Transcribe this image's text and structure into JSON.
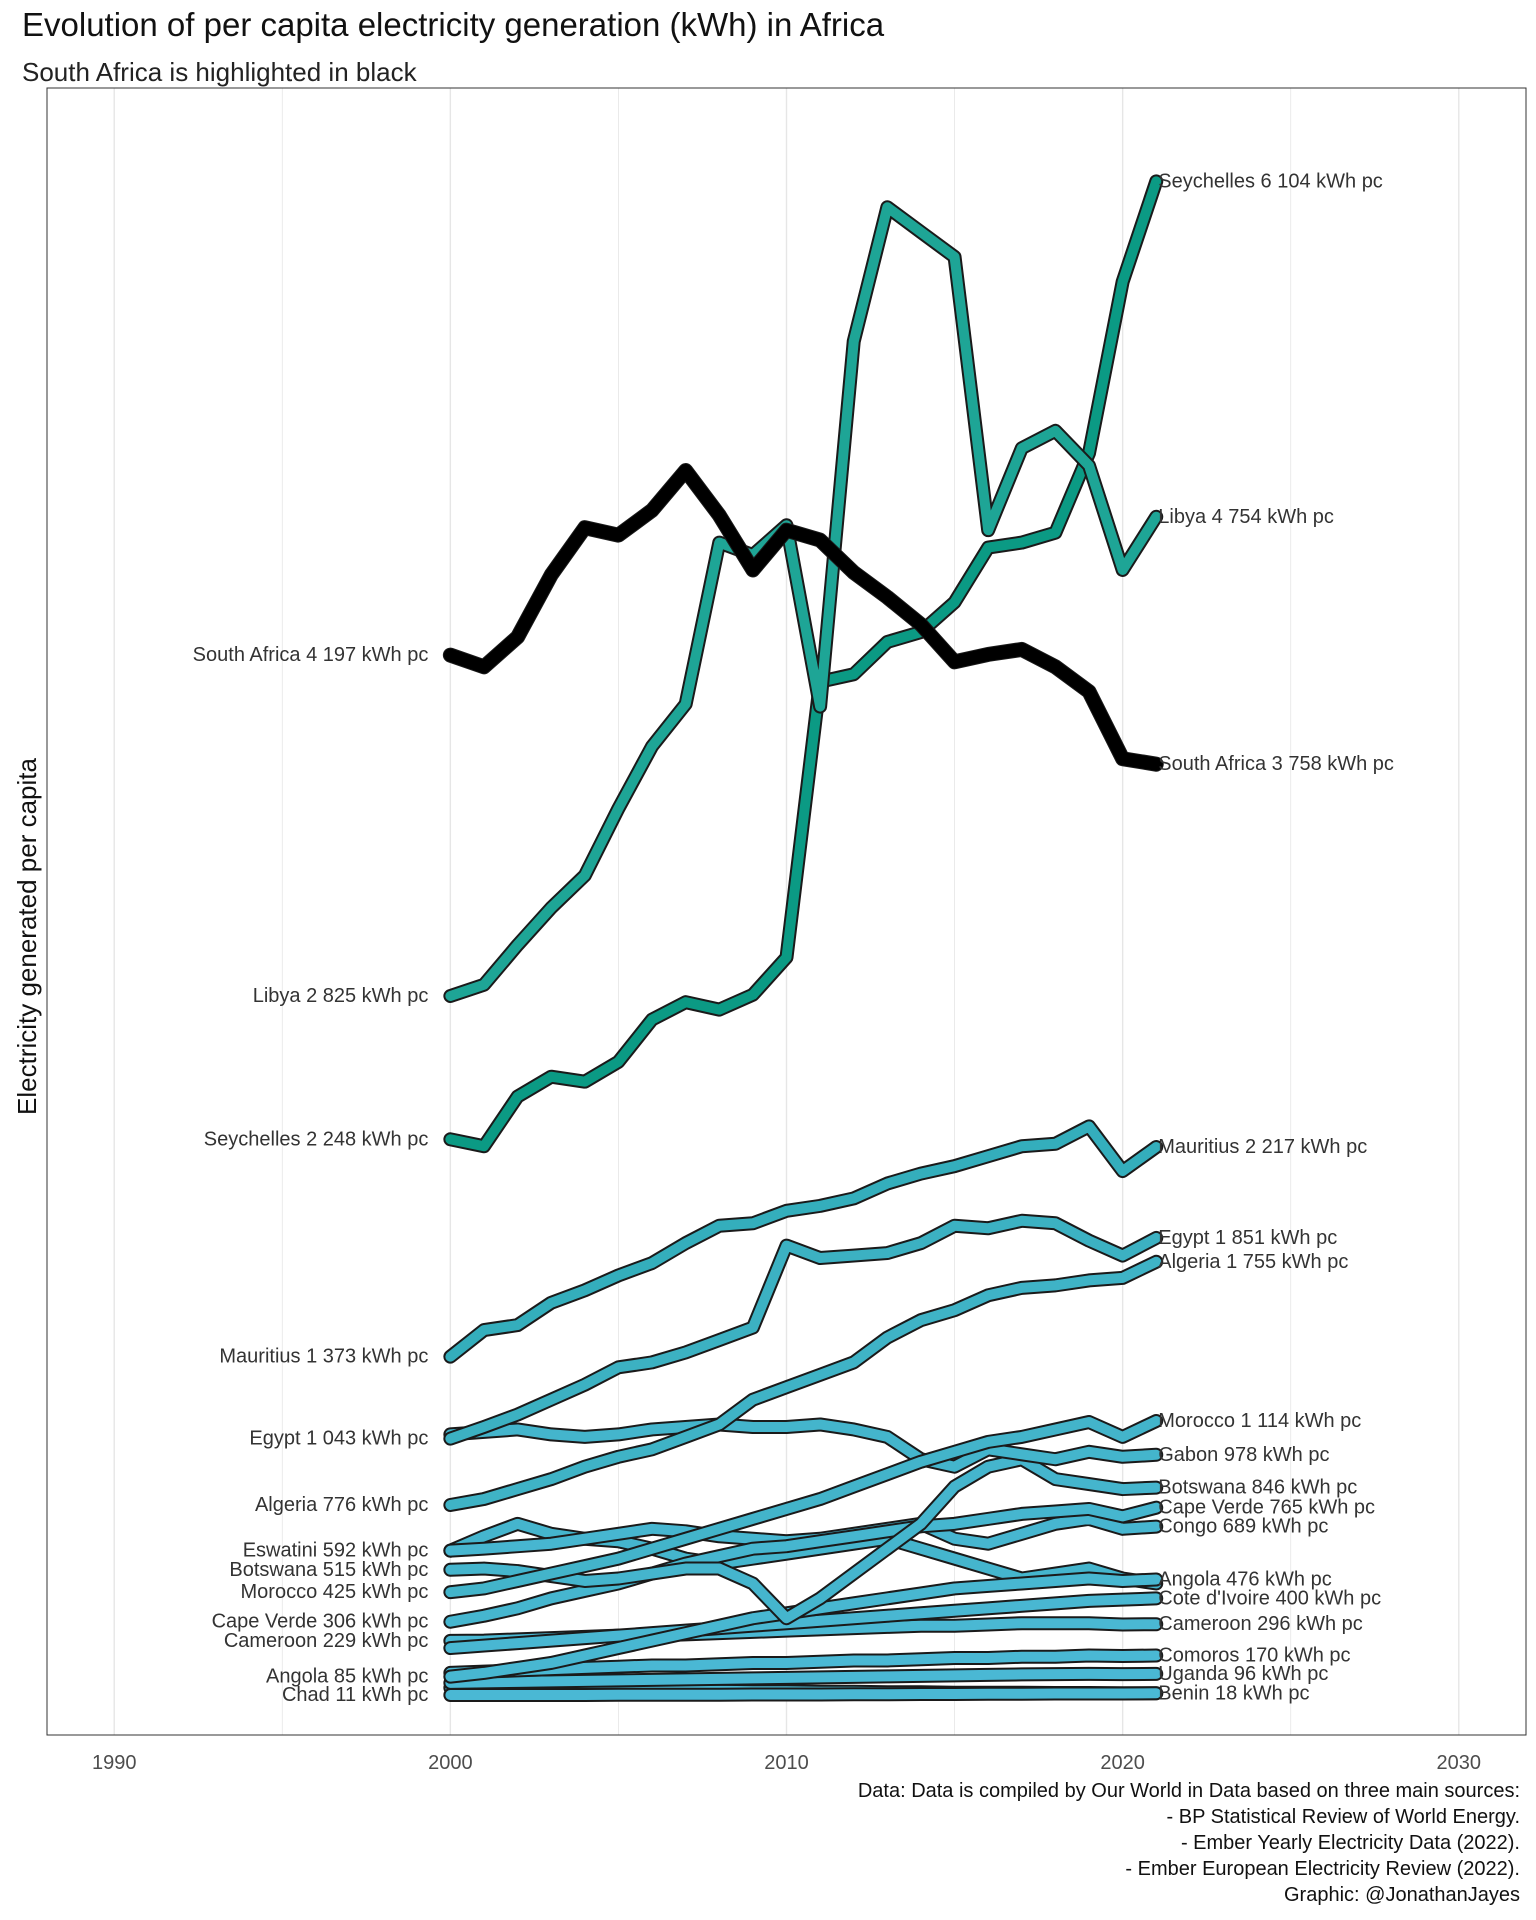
{
  "header": {
    "title": "Evolution of per capita electricity generation (kWh) in Africa",
    "subtitle": "South Africa is highlighted in black"
  },
  "caption": [
    "Data: Data is compiled by Our World in Data based on three main sources:",
    "- BP Statistical Review of World Energy.",
    "- Ember Yearly Electricity Data (2022).",
    "- Ember European Electricity Review (2022).",
    "Graphic: @JonathanJayes"
  ],
  "colors": {
    "highlight": "#000000",
    "teal_dark": "#0b9a84",
    "teal": "#1ea596",
    "blue_green": "#34aebc",
    "blue": "#47b6d1",
    "grid": "#e6e6e6"
  },
  "chart_data": {
    "type": "line",
    "title": "Evolution of per capita electricity generation (kWh) in Africa",
    "subtitle": "South Africa is highlighted in black",
    "xlabel": "",
    "ylabel": "Electricity generated per capita",
    "xlim": [
      1988,
      2032
    ],
    "ylim": [
      -150,
      6480
    ],
    "x_ticks": [
      1990,
      2000,
      2010,
      2020,
      2030
    ],
    "grid": "vertical",
    "legend": "none",
    "years": [
      2000,
      2001,
      2002,
      2003,
      2004,
      2005,
      2006,
      2007,
      2008,
      2009,
      2010,
      2011,
      2012,
      2013,
      2014,
      2015,
      2016,
      2017,
      2018,
      2019,
      2020,
      2021
    ],
    "series": [
      {
        "name": "South Africa",
        "color": "#000000",
        "highlight": true,
        "values": [
          4197,
          4150,
          4270,
          4520,
          4710,
          4680,
          4780,
          4940,
          4760,
          4540,
          4700,
          4660,
          4530,
          4430,
          4320,
          4170,
          4200,
          4220,
          4150,
          4050,
          3780,
          3758
        ]
      },
      {
        "name": "Libya",
        "color": "#1ea596",
        "values": [
          2825,
          2870,
          3030,
          3180,
          3310,
          3580,
          3830,
          4000,
          4650,
          4600,
          4720,
          3990,
          5460,
          6000,
          5900,
          5800,
          4700,
          5030,
          5100,
          4960,
          4540,
          4754
        ]
      },
      {
        "name": "Seychelles",
        "color": "#0b9a84",
        "values": [
          2248,
          2220,
          2420,
          2500,
          2480,
          2560,
          2730,
          2800,
          2770,
          2830,
          2980,
          4090,
          4120,
          4250,
          4290,
          4410,
          4630,
          4650,
          4690,
          5010,
          5700,
          6104
        ]
      },
      {
        "name": "Mauritius",
        "color": "#34aebc",
        "values": [
          1373,
          1480,
          1500,
          1590,
          1640,
          1700,
          1750,
          1830,
          1900,
          1910,
          1960,
          1980,
          2010,
          2070,
          2110,
          2140,
          2180,
          2220,
          2230,
          2300,
          2120,
          2217
        ]
      },
      {
        "name": "Egypt",
        "color": "#3cb1c2",
        "values": [
          1043,
          1090,
          1140,
          1200,
          1260,
          1330,
          1350,
          1390,
          1440,
          1490,
          1820,
          1770,
          1780,
          1790,
          1830,
          1900,
          1890,
          1920,
          1910,
          1840,
          1780,
          1851
        ]
      },
      {
        "name": "Algeria",
        "color": "#3fb3c6",
        "values": [
          776,
          800,
          840,
          880,
          930,
          970,
          1000,
          1050,
          1100,
          1200,
          1250,
          1300,
          1350,
          1450,
          1520,
          1560,
          1620,
          1650,
          1660,
          1680,
          1690,
          1755
        ]
      },
      {
        "name": "Morocco",
        "color": "#43b4ca",
        "values": [
          425,
          440,
          470,
          500,
          530,
          560,
          600,
          640,
          680,
          720,
          760,
          800,
          850,
          900,
          950,
          990,
          1030,
          1050,
          1080,
          1110,
          1050,
          1114
        ]
      },
      {
        "name": "Gabon",
        "color": "#44b5cc",
        "values": [
          1060,
          1070,
          1080,
          1060,
          1050,
          1060,
          1080,
          1090,
          1100,
          1090,
          1090,
          1100,
          1080,
          1050,
          960,
          930,
          1000,
          980,
          960,
          990,
          970,
          978
        ]
      },
      {
        "name": "Botswana",
        "color": "#45b5cd",
        "values": [
          515,
          520,
          510,
          490,
          470,
          480,
          500,
          520,
          520,
          460,
          320,
          400,
          500,
          600,
          700,
          850,
          930,
          960,
          880,
          860,
          840,
          846
        ]
      },
      {
        "name": "Cape Verde",
        "color": "#46b6cf",
        "values": [
          306,
          330,
          360,
          400,
          430,
          460,
          500,
          540,
          570,
          600,
          610,
          630,
          650,
          670,
          690,
          700,
          720,
          740,
          750,
          760,
          730,
          765
        ]
      },
      {
        "name": "Congo",
        "color": "#47b6d0",
        "values": [
          592,
          600,
          610,
          620,
          640,
          660,
          680,
          670,
          650,
          640,
          630,
          640,
          660,
          680,
          700,
          640,
          620,
          660,
          700,
          720,
          680,
          689
        ]
      },
      {
        "name": "Angola",
        "color": "#48b7d1",
        "values": [
          85,
          100,
          120,
          140,
          170,
          200,
          230,
          260,
          290,
          320,
          340,
          360,
          380,
          400,
          420,
          440,
          450,
          460,
          470,
          480,
          470,
          476
        ]
      },
      {
        "name": "Cote d'Ivoire",
        "color": "#49b7d2",
        "values": [
          200,
          210,
          220,
          230,
          240,
          250,
          260,
          270,
          280,
          290,
          300,
          310,
          320,
          330,
          340,
          350,
          360,
          370,
          380,
          390,
          395,
          400
        ]
      },
      {
        "name": "Cameroon",
        "color": "#4ab8d3",
        "values": [
          229,
          230,
          235,
          240,
          245,
          250,
          250,
          255,
          260,
          265,
          270,
          275,
          280,
          285,
          290,
          290,
          295,
          300,
          300,
          300,
          295,
          296
        ]
      },
      {
        "name": "Eswatini",
        "color": "#45b5cd",
        "values": [
          592,
          650,
          700,
          660,
          640,
          630,
          600,
          560,
          540,
          560,
          580,
          600,
          620,
          640,
          600,
          560,
          520,
          480,
          500,
          520,
          480,
          460
        ]
      },
      {
        "name": "Comoros",
        "color": "#4ab8d4",
        "values": [
          100,
          105,
          110,
          115,
          120,
          125,
          130,
          130,
          135,
          140,
          140,
          145,
          150,
          150,
          155,
          160,
          160,
          165,
          165,
          170,
          168,
          170
        ]
      },
      {
        "name": "Uganda",
        "color": "#4ab8d4",
        "values": [
          60,
          62,
          64,
          66,
          68,
          70,
          72,
          74,
          76,
          78,
          80,
          82,
          84,
          86,
          88,
          90,
          92,
          94,
          95,
          96,
          95,
          96
        ]
      },
      {
        "name": "Chad",
        "color": "#4ab8d4",
        "values": [
          11,
          11,
          11,
          11,
          11,
          12,
          12,
          12,
          12,
          13,
          13,
          13,
          14,
          14,
          15,
          15,
          16,
          16,
          17,
          17,
          17,
          18
        ]
      },
      {
        "name": "Benin",
        "color": "#4ab8d4",
        "values": [
          40,
          38,
          36,
          34,
          32,
          30,
          30,
          28,
          28,
          26,
          26,
          24,
          24,
          22,
          22,
          20,
          20,
          20,
          19,
          19,
          18,
          18
        ]
      }
    ],
    "start_labels": [
      {
        "text": "South Africa 4 197 kWh pc",
        "value": 4197
      },
      {
        "text": "Libya 2 825 kWh pc",
        "value": 2825
      },
      {
        "text": "Seychelles 2 248 kWh pc",
        "value": 2248
      },
      {
        "text": "Mauritius 1 373 kWh pc",
        "value": 1373
      },
      {
        "text": "Egypt 1 043 kWh pc",
        "value": 1043
      },
      {
        "text": "Algeria 776 kWh pc",
        "value": 776
      },
      {
        "text": "Eswatini 592 kWh pc",
        "value": 592
      },
      {
        "text": "Botswana 515 kWh pc",
        "value": 515
      },
      {
        "text": "Morocco 425 kWh pc",
        "value": 425
      },
      {
        "text": "Cape Verde 306 kWh pc",
        "value": 306
      },
      {
        "text": "Cameroon 229 kWh pc",
        "value": 229
      },
      {
        "text": "Angola 85 kWh pc",
        "value": 85
      },
      {
        "text": "Chad 11 kWh pc",
        "value": 11
      }
    ],
    "end_labels": [
      {
        "text": "Seychelles 6 104 kWh pc",
        "value": 6104
      },
      {
        "text": "Libya 4 754 kWh pc",
        "value": 4754
      },
      {
        "text": "South Africa 3 758 kWh pc",
        "value": 3758
      },
      {
        "text": "Mauritius 2 217 kWh pc",
        "value": 2217
      },
      {
        "text": "Egypt 1 851 kWh pc",
        "value": 1851
      },
      {
        "text": "Algeria 1 755 kWh pc",
        "value": 1755
      },
      {
        "text": "Morocco 1 114 kWh pc",
        "value": 1114
      },
      {
        "text": "Gabon 978 kWh pc",
        "value": 978
      },
      {
        "text": "Botswana 846 kWh pc",
        "value": 846
      },
      {
        "text": "Cape Verde 765 kWh pc",
        "value": 765
      },
      {
        "text": "Congo 689 kWh pc",
        "value": 689
      },
      {
        "text": "Angola 476 kWh pc",
        "value": 476
      },
      {
        "text": "Cote d'Ivoire 400 kWh pc",
        "value": 400
      },
      {
        "text": "Cameroon 296 kWh pc",
        "value": 296
      },
      {
        "text": "Comoros 170 kWh pc",
        "value": 170
      },
      {
        "text": "Uganda 96 kWh pc",
        "value": 96
      },
      {
        "text": "Benin 18 kWh pc",
        "value": 18
      }
    ]
  }
}
